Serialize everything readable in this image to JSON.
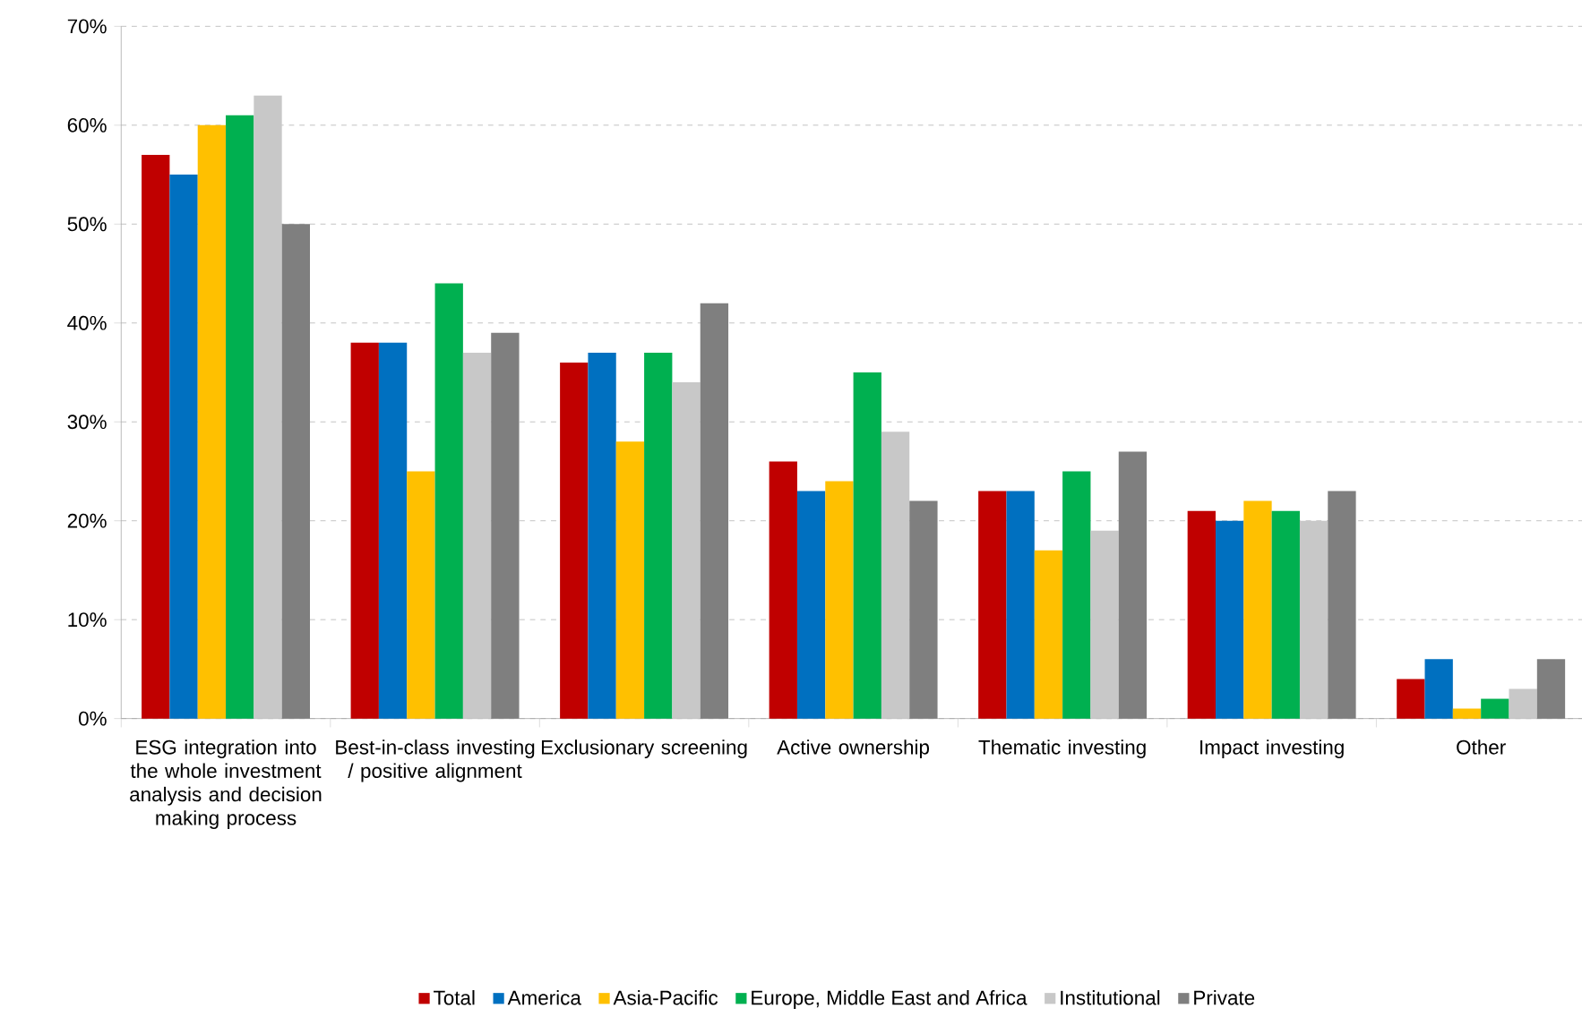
{
  "chart_data": {
    "type": "bar",
    "categories": [
      "ESG integration into the whole investment analysis and decision making process",
      "Best-in-class investing / positive alignment",
      "Exclusionary screening",
      "Active ownership",
      "Thematic investing",
      "Impact investing",
      "Other"
    ],
    "series": [
      {
        "name": "Total",
        "color": "#c00000",
        "values": [
          57,
          38,
          36,
          26,
          23,
          21,
          4
        ]
      },
      {
        "name": "America",
        "color": "#0070c0",
        "values": [
          55,
          38,
          37,
          23,
          23,
          20,
          6
        ]
      },
      {
        "name": "Asia-Pacific",
        "color": "#ffc000",
        "values": [
          60,
          25,
          28,
          24,
          17,
          22,
          1
        ]
      },
      {
        "name": "Europe, Middle East and Africa",
        "color": "#00b050",
        "values": [
          61,
          44,
          37,
          35,
          25,
          21,
          2
        ]
      },
      {
        "name": "Institutional",
        "color": "#c8c8c8",
        "values": [
          63,
          37,
          34,
          29,
          19,
          20,
          3
        ]
      },
      {
        "name": "Private",
        "color": "#7f7f7f",
        "values": [
          50,
          39,
          42,
          22,
          27,
          23,
          6
        ]
      }
    ],
    "ylim": [
      0,
      70
    ],
    "yticks": [
      {
        "value": 0,
        "label": "0%"
      },
      {
        "value": 10,
        "label": "10%"
      },
      {
        "value": 20,
        "label": "20%"
      },
      {
        "value": 30,
        "label": "30%"
      },
      {
        "value": 40,
        "label": "40%"
      },
      {
        "value": 50,
        "label": "50%"
      },
      {
        "value": 60,
        "label": "60%"
      },
      {
        "value": 70,
        "label": "70%"
      }
    ],
    "grid": "y",
    "legend": "bottom"
  }
}
